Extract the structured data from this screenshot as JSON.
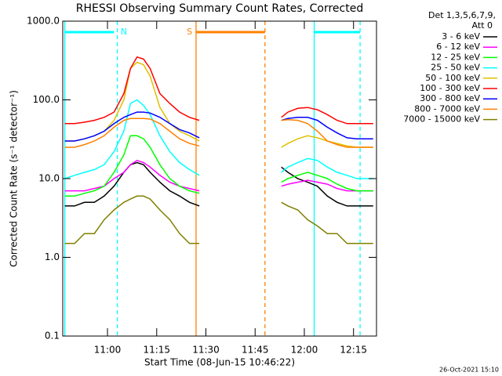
{
  "chart_data": {
    "type": "line",
    "title": "RHESSI Observing Summary Count Rates, Corrected",
    "x_label": "Start Time (08-Jun-15 10:46:22)",
    "y_label": "Corrected Count Rate (s⁻¹ detector⁻¹)",
    "legend_header": [
      "Det 1,3,5,6,7,9,",
      "Att 0"
    ],
    "timestamp": "26-Oct-2021 15:10",
    "log_y": true,
    "ylim": [
      0.1,
      1000
    ],
    "yticks": [
      {
        "value": 0.1,
        "label": "0.1"
      },
      {
        "value": 1,
        "label": "1.0"
      },
      {
        "value": 10,
        "label": "10.0"
      },
      {
        "value": 100,
        "label": "100.0"
      },
      {
        "value": 1000,
        "label": "1000.0"
      }
    ],
    "xlim": [
      "10:46:22",
      "12:22:00"
    ],
    "xticks": [
      "11:00",
      "11:15",
      "11:30",
      "11:45",
      "12:00",
      "12:15"
    ],
    "x": [
      "10:47",
      "10:50",
      "10:53",
      "10:56",
      "10:59",
      "11:02",
      "11:05",
      "11:07",
      "11:09",
      "11:11",
      "11:13",
      "11:16",
      "11:19",
      "11:22",
      "11:25",
      "11:28",
      "11:40",
      "11:53",
      "11:55",
      "11:58",
      "12:01",
      "12:04",
      "12:07",
      "12:10",
      "12:13",
      "12:16",
      "12:19",
      "12:21"
    ],
    "series": [
      {
        "name": "3 - 6 keV",
        "color": "#000000",
        "values": [
          4.5,
          4.5,
          5,
          5,
          6,
          8,
          12,
          15,
          16,
          15,
          12,
          9,
          7,
          6,
          5,
          4.5,
          null,
          14,
          12,
          10,
          9,
          8,
          6,
          5,
          4.5,
          4.5,
          4.5,
          4.5
        ]
      },
      {
        "name": "6 - 12 keV",
        "color": "#ff00ff",
        "values": [
          7,
          7,
          7,
          7.5,
          8,
          10,
          12,
          15,
          17,
          16,
          14,
          11,
          9,
          8,
          7.5,
          7,
          null,
          8,
          8.5,
          9,
          9.5,
          9,
          8.5,
          7.5,
          7,
          7,
          7,
          7
        ]
      },
      {
        "name": "12 - 25 keV",
        "color": "#00ff00",
        "values": [
          6,
          6,
          6.5,
          7,
          8,
          12,
          20,
          35,
          35,
          32,
          25,
          15,
          10,
          8,
          7,
          6.5,
          null,
          9,
          10,
          11,
          12,
          11,
          10,
          8.5,
          7.5,
          7,
          7,
          7
        ]
      },
      {
        "name": "25 - 50 keV",
        "color": "#00ffff",
        "values": [
          10,
          11,
          12,
          13,
          15,
          22,
          40,
          90,
          100,
          85,
          65,
          35,
          22,
          16,
          13,
          11,
          null,
          12,
          14,
          16,
          18,
          17,
          14,
          12,
          11,
          10,
          10,
          10
        ]
      },
      {
        "name": "50 - 100 keV",
        "color": "#e0c000",
        "values": [
          30,
          30,
          32,
          35,
          40,
          55,
          100,
          250,
          300,
          280,
          200,
          80,
          50,
          40,
          35,
          30,
          null,
          25,
          28,
          32,
          35,
          33,
          30,
          28,
          26,
          25,
          25,
          25
        ]
      },
      {
        "name": "100 - 300 keV",
        "color": "#ff0000",
        "values": [
          50,
          50,
          52,
          55,
          60,
          70,
          120,
          250,
          350,
          330,
          250,
          120,
          90,
          70,
          60,
          55,
          null,
          60,
          70,
          78,
          80,
          75,
          65,
          55,
          50,
          50,
          50,
          50
        ]
      },
      {
        "name": "300 - 800 keV",
        "color": "#0000ff",
        "values": [
          30,
          30,
          32,
          35,
          40,
          50,
          60,
          65,
          70,
          70,
          68,
          60,
          50,
          42,
          38,
          33,
          null,
          55,
          58,
          60,
          60,
          55,
          45,
          38,
          33,
          32,
          32,
          32
        ]
      },
      {
        "name": "800 - 7000 keV",
        "color": "#ff8000",
        "values": [
          25,
          25,
          27,
          30,
          35,
          45,
          55,
          58,
          58,
          58,
          57,
          50,
          40,
          32,
          28,
          26,
          null,
          55,
          56,
          55,
          50,
          40,
          30,
          27,
          25,
          25,
          25,
          25
        ]
      },
      {
        "name": "7000 - 15000 keV",
        "color": "#808000",
        "values": [
          1.5,
          1.5,
          2,
          2,
          3,
          4,
          5,
          5.5,
          6,
          6,
          5.5,
          4,
          3,
          2,
          1.5,
          1.5,
          null,
          5,
          4.5,
          4,
          3,
          2.5,
          2,
          2,
          1.5,
          1.5,
          1.5,
          1.5
        ]
      }
    ],
    "event_lines": [
      {
        "time": "10:47",
        "color": "#00ffff",
        "dashed": false
      },
      {
        "time": "11:03",
        "color": "#00ffff",
        "dashed": true
      },
      {
        "time": "11:27",
        "color": "#ff8000",
        "dashed": false
      },
      {
        "time": "11:48",
        "color": "#ff8000",
        "dashed": true
      },
      {
        "time": "12:03",
        "color": "#00ffff",
        "dashed": false
      },
      {
        "time": "12:17",
        "color": "#00ffff",
        "dashed": true
      }
    ],
    "flag_bars": [
      {
        "start": "10:47",
        "end": "11:02",
        "color": "#00ffff"
      },
      {
        "start": "12:03",
        "end": "12:17",
        "color": "#00ffff"
      },
      {
        "start": "11:27",
        "end": "11:48",
        "color": "#ff8000"
      }
    ],
    "flag_labels": [
      {
        "text": "N",
        "time": "11:05",
        "color": "#00ffff"
      },
      {
        "text": "S",
        "time": "11:25",
        "color": "#ff8000"
      }
    ]
  }
}
